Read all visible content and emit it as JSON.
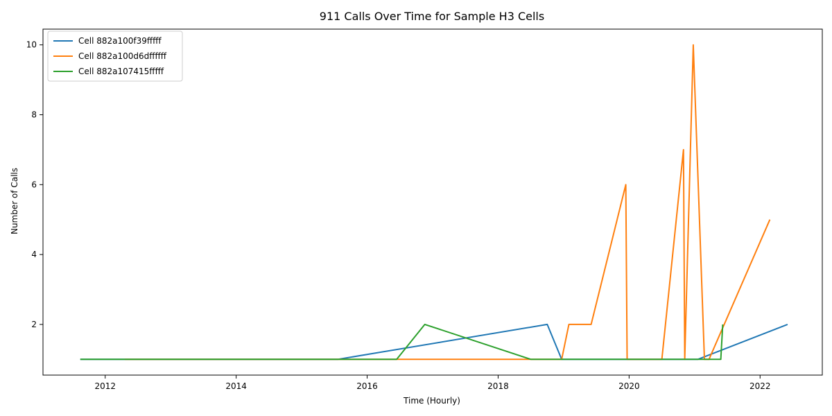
{
  "chart_data": {
    "type": "line",
    "title": "911 Calls Over Time for Sample H3 Cells",
    "xlabel": "Time (Hourly)",
    "ylabel": "Number of Calls",
    "xlim": [
      2011.05,
      2022.95
    ],
    "ylim": [
      0.55,
      10.45
    ],
    "x_ticks": [
      2012,
      2014,
      2016,
      2018,
      2020,
      2022
    ],
    "y_ticks": [
      2,
      4,
      6,
      8,
      10
    ],
    "grid": false,
    "legend_position": "upper-left",
    "series": [
      {
        "name": "Cell 882a100f39fffff",
        "color": "#1f77b4",
        "points": [
          [
            2011.62,
            1
          ],
          [
            2015.55,
            1
          ],
          [
            2018.75,
            2
          ],
          [
            2018.97,
            1
          ],
          [
            2021.05,
            1
          ],
          [
            2022.42,
            2
          ]
        ]
      },
      {
        "name": "Cell 882a100d6dffffff",
        "color": "#ff7f0e",
        "points": [
          [
            2012.3,
            1
          ],
          [
            2018.97,
            1
          ],
          [
            2019.08,
            2
          ],
          [
            2019.42,
            2
          ],
          [
            2019.95,
            6
          ],
          [
            2019.97,
            1
          ],
          [
            2020.5,
            1
          ],
          [
            2020.83,
            7
          ],
          [
            2020.85,
            1
          ],
          [
            2020.98,
            10
          ],
          [
            2021.15,
            1
          ],
          [
            2021.22,
            1
          ],
          [
            2022.15,
            5
          ]
        ]
      },
      {
        "name": "Cell 882a107415fffff",
        "color": "#2ca02c",
        "points": [
          [
            2011.62,
            1
          ],
          [
            2016.45,
            1
          ],
          [
            2016.88,
            2
          ],
          [
            2018.5,
            1
          ],
          [
            2021.4,
            1
          ],
          [
            2021.43,
            2
          ]
        ]
      }
    ]
  }
}
